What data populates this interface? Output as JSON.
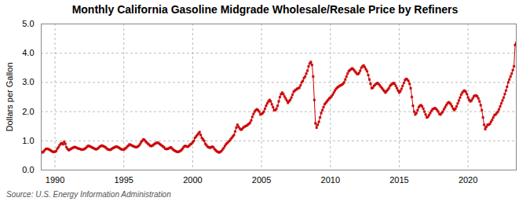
{
  "chart_data": {
    "type": "line",
    "title": "Monthly California Gasoline Midgrade Wholesale/Resale Price by Refiners",
    "ylabel": "Dollars per Gallon",
    "caption": "Source: U.S. Energy Information Administration",
    "color": "#cc0000",
    "marker": "square",
    "line_style": "solid",
    "grid": true,
    "xlim": [
      1989.0,
      2023.5
    ],
    "ylim": [
      0.0,
      5.0
    ],
    "xticks": [
      1990,
      1995,
      2000,
      2005,
      2010,
      2015,
      2020
    ],
    "yticks": [
      {
        "value": 0.0,
        "label": "0.0"
      },
      {
        "value": 1.0,
        "label": "1.0"
      },
      {
        "value": 2.0,
        "label": "2.0"
      },
      {
        "value": 3.0,
        "label": "3.0"
      },
      {
        "value": 4.0,
        "label": "4.0"
      },
      {
        "value": 5.0,
        "label": "5.0"
      }
    ],
    "x": [
      1989,
      1989.0833,
      1989.1667,
      1989.25,
      1989.3333,
      1989.4167,
      1989.5,
      1989.5833,
      1989.6667,
      1989.75,
      1989.8333,
      1989.9167,
      1990,
      1990.0833,
      1990.1667,
      1990.25,
      1990.3333,
      1990.4167,
      1990.5,
      1990.5833,
      1990.6667,
      1990.75,
      1990.8333,
      1990.9167,
      1991,
      1991.0833,
      1991.1667,
      1991.25,
      1991.3333,
      1991.4167,
      1991.5,
      1991.5833,
      1991.6667,
      1991.75,
      1991.8333,
      1991.9167,
      1992,
      1992.0833,
      1992.1667,
      1992.25,
      1992.3333,
      1992.4167,
      1992.5,
      1992.5833,
      1992.6667,
      1992.75,
      1992.8333,
      1992.9167,
      1993,
      1993.0833,
      1993.1667,
      1993.25,
      1993.3333,
      1993.4167,
      1993.5,
      1993.5833,
      1993.6667,
      1993.75,
      1993.8333,
      1993.9167,
      1994,
      1994.0833,
      1994.1667,
      1994.25,
      1994.3333,
      1994.4167,
      1994.5,
      1994.5833,
      1994.6667,
      1994.75,
      1994.8333,
      1994.9167,
      1995,
      1995.0833,
      1995.1667,
      1995.25,
      1995.3333,
      1995.4167,
      1995.5,
      1995.5833,
      1995.6667,
      1995.75,
      1995.8333,
      1995.9167,
      1996,
      1996.0833,
      1996.1667,
      1996.25,
      1996.3333,
      1996.4167,
      1996.5,
      1996.5833,
      1996.6667,
      1996.75,
      1996.8333,
      1996.9167,
      1997,
      1997.0833,
      1997.1667,
      1997.25,
      1997.3333,
      1997.4167,
      1997.5,
      1997.5833,
      1997.6667,
      1997.75,
      1997.8333,
      1997.9167,
      1998,
      1998.0833,
      1998.1667,
      1998.25,
      1998.3333,
      1998.4167,
      1998.5,
      1998.5833,
      1998.6667,
      1998.75,
      1998.8333,
      1998.9167,
      1999,
      1999.0833,
      1999.1667,
      1999.25,
      1999.3333,
      1999.4167,
      1999.5,
      1999.5833,
      1999.6667,
      1999.75,
      1999.8333,
      1999.9167,
      2000,
      2000.0833,
      2000.1667,
      2000.25,
      2000.3333,
      2000.4167,
      2000.5,
      2000.5833,
      2000.6667,
      2000.75,
      2000.8333,
      2000.9167,
      2001,
      2001.0833,
      2001.1667,
      2001.25,
      2001.3333,
      2001.4167,
      2001.5,
      2001.5833,
      2001.6667,
      2001.75,
      2001.8333,
      2001.9167,
      2002,
      2002.0833,
      2002.1667,
      2002.25,
      2002.3333,
      2002.4167,
      2002.5,
      2002.5833,
      2002.6667,
      2002.75,
      2002.8333,
      2002.9167,
      2003,
      2003.0833,
      2003.1667,
      2003.25,
      2003.3333,
      2003.4167,
      2003.5,
      2003.5833,
      2003.6667,
      2003.75,
      2003.8333,
      2003.9167,
      2004,
      2004.0833,
      2004.1667,
      2004.25,
      2004.3333,
      2004.4167,
      2004.5,
      2004.5833,
      2004.6667,
      2004.75,
      2004.8333,
      2004.9167,
      2005,
      2005.0833,
      2005.1667,
      2005.25,
      2005.3333,
      2005.4167,
      2005.5,
      2005.5833,
      2005.6667,
      2005.75,
      2005.8333,
      2005.9167,
      2006,
      2006.0833,
      2006.1667,
      2006.25,
      2006.3333,
      2006.4167,
      2006.5,
      2006.5833,
      2006.6667,
      2006.75,
      2006.8333,
      2006.9167,
      2007,
      2007.0833,
      2007.1667,
      2007.25,
      2007.3333,
      2007.4167,
      2007.5,
      2007.5833,
      2007.6667,
      2007.75,
      2007.8333,
      2007.9167,
      2008,
      2008.0833,
      2008.1667,
      2008.25,
      2008.3333,
      2008.4167,
      2008.5,
      2008.5833,
      2008.6667,
      2008.75,
      2008.8333,
      2008.9167,
      2009,
      2009.0833,
      2009.1667,
      2009.25,
      2009.3333,
      2009.4167,
      2009.5,
      2009.5833,
      2009.6667,
      2009.75,
      2009.8333,
      2009.9167,
      2010,
      2010.0833,
      2010.1667,
      2010.25,
      2010.3333,
      2010.4167,
      2010.5,
      2010.5833,
      2010.6667,
      2010.75,
      2010.8333,
      2010.9167,
      2011,
      2011.0833,
      2011.1667,
      2011.25,
      2011.3333,
      2011.4167,
      2011.5,
      2011.5833,
      2011.6667,
      2011.75,
      2011.8333,
      2011.9167,
      2012,
      2012.0833,
      2012.1667,
      2012.25,
      2012.3333,
      2012.4167,
      2012.5,
      2012.5833,
      2012.6667,
      2012.75,
      2012.8333,
      2012.9167,
      2013,
      2013.0833,
      2013.1667,
      2013.25,
      2013.3333,
      2013.4167,
      2013.5,
      2013.5833,
      2013.6667,
      2013.75,
      2013.8333,
      2013.9167,
      2014,
      2014.0833,
      2014.1667,
      2014.25,
      2014.3333,
      2014.4167,
      2014.5,
      2014.5833,
      2014.6667,
      2014.75,
      2014.8333,
      2014.9167,
      2015,
      2015.0833,
      2015.1667,
      2015.25,
      2015.3333,
      2015.4167,
      2015.5,
      2015.5833,
      2015.6667,
      2015.75,
      2015.8333,
      2015.9167,
      2016,
      2016.0833,
      2016.1667,
      2016.25,
      2016.3333,
      2016.4167,
      2016.5,
      2016.5833,
      2016.6667,
      2016.75,
      2016.8333,
      2016.9167,
      2017,
      2017.0833,
      2017.1667,
      2017.25,
      2017.3333,
      2017.4167,
      2017.5,
      2017.5833,
      2017.6667,
      2017.75,
      2017.8333,
      2017.9167,
      2018,
      2018.0833,
      2018.1667,
      2018.25,
      2018.3333,
      2018.4167,
      2018.5,
      2018.5833,
      2018.6667,
      2018.75,
      2018.8333,
      2018.9167,
      2019,
      2019.0833,
      2019.1667,
      2019.25,
      2019.3333,
      2019.4167,
      2019.5,
      2019.5833,
      2019.6667,
      2019.75,
      2019.8333,
      2019.9167,
      2020,
      2020.0833,
      2020.1667,
      2020.25,
      2020.3333,
      2020.4167,
      2020.5,
      2020.5833,
      2020.6667,
      2020.75,
      2020.8333,
      2020.9167,
      2021,
      2021.0833,
      2021.1667,
      2021.25,
      2021.3333,
      2021.4167,
      2021.5,
      2021.5833,
      2021.6667,
      2021.75,
      2021.8333,
      2021.9167,
      2022,
      2022.0833,
      2022.1667,
      2022.25,
      2022.3333,
      2022.4167,
      2022.5,
      2022.5833,
      2022.6667,
      2022.75,
      2022.8333,
      2022.9167,
      2023,
      2023.0833,
      2023.1667,
      2023.25,
      2023.3333,
      2023.4167,
      2023.5
    ],
    "values": [
      0.62,
      0.6,
      0.63,
      0.68,
      0.72,
      0.73,
      0.72,
      0.7,
      0.68,
      0.65,
      0.63,
      0.62,
      0.63,
      0.65,
      0.73,
      0.78,
      0.85,
      0.9,
      0.92,
      0.88,
      0.97,
      0.9,
      0.78,
      0.72,
      0.68,
      0.7,
      0.73,
      0.75,
      0.77,
      0.79,
      0.78,
      0.76,
      0.74,
      0.73,
      0.72,
      0.7,
      0.7,
      0.71,
      0.73,
      0.76,
      0.8,
      0.83,
      0.82,
      0.8,
      0.78,
      0.76,
      0.74,
      0.72,
      0.71,
      0.73,
      0.76,
      0.8,
      0.82,
      0.84,
      0.82,
      0.8,
      0.78,
      0.74,
      0.71,
      0.7,
      0.69,
      0.71,
      0.74,
      0.76,
      0.78,
      0.8,
      0.8,
      0.78,
      0.76,
      0.73,
      0.71,
      0.7,
      0.7,
      0.73,
      0.76,
      0.8,
      0.84,
      0.88,
      0.86,
      0.84,
      0.82,
      0.8,
      0.79,
      0.78,
      0.8,
      0.83,
      0.88,
      0.95,
      1.0,
      1.05,
      1.03,
      0.98,
      0.94,
      0.9,
      0.87,
      0.83,
      0.82,
      0.84,
      0.87,
      0.9,
      0.92,
      0.94,
      0.93,
      0.9,
      0.87,
      0.84,
      0.81,
      0.78,
      0.73,
      0.72,
      0.72,
      0.74,
      0.76,
      0.78,
      0.74,
      0.7,
      0.67,
      0.65,
      0.63,
      0.62,
      0.63,
      0.65,
      0.68,
      0.72,
      0.78,
      0.82,
      0.82,
      0.8,
      0.8,
      0.84,
      0.88,
      0.9,
      0.95,
      1.0,
      1.1,
      1.15,
      1.2,
      1.25,
      1.3,
      1.2,
      1.1,
      1.05,
      1.0,
      0.9,
      0.85,
      0.8,
      0.78,
      0.76,
      0.78,
      0.8,
      0.78,
      0.72,
      0.68,
      0.64,
      0.62,
      0.6,
      0.62,
      0.65,
      0.7,
      0.75,
      0.82,
      0.88,
      0.92,
      0.96,
      1.0,
      1.05,
      1.1,
      1.15,
      1.2,
      1.32,
      1.45,
      1.55,
      1.48,
      1.42,
      1.38,
      1.4,
      1.45,
      1.48,
      1.5,
      1.52,
      1.55,
      1.58,
      1.62,
      1.7,
      1.82,
      1.92,
      2.0,
      2.05,
      2.08,
      2.05,
      2.0,
      1.9,
      1.92,
      1.95,
      2.0,
      2.1,
      2.2,
      2.28,
      2.35,
      2.4,
      2.35,
      2.25,
      2.15,
      2.05,
      2.05,
      2.1,
      2.2,
      2.35,
      2.5,
      2.6,
      2.65,
      2.6,
      2.52,
      2.45,
      2.38,
      2.3,
      2.35,
      2.4,
      2.48,
      2.58,
      2.68,
      2.72,
      2.75,
      2.78,
      2.8,
      2.82,
      2.9,
      3.0,
      3.05,
      3.15,
      3.2,
      3.3,
      3.4,
      3.55,
      3.65,
      3.7,
      3.6,
      3.2,
      2.4,
      1.6,
      1.45,
      1.55,
      1.65,
      1.8,
      1.95,
      2.05,
      2.15,
      2.25,
      2.3,
      2.35,
      2.4,
      2.45,
      2.48,
      2.52,
      2.58,
      2.65,
      2.72,
      2.78,
      2.82,
      2.85,
      2.88,
      2.9,
      2.92,
      2.95,
      3.0,
      3.1,
      3.2,
      3.3,
      3.38,
      3.42,
      3.45,
      3.48,
      3.45,
      3.4,
      3.35,
      3.3,
      3.28,
      3.32,
      3.4,
      3.5,
      3.55,
      3.58,
      3.52,
      3.45,
      3.38,
      3.25,
      3.1,
      2.95,
      2.8,
      2.82,
      2.88,
      2.92,
      2.95,
      2.98,
      2.95,
      2.9,
      2.85,
      2.8,
      2.75,
      2.7,
      2.65,
      2.7,
      2.75,
      2.8,
      2.88,
      2.92,
      2.95,
      2.98,
      2.95,
      2.88,
      2.8,
      2.72,
      2.65,
      2.7,
      2.78,
      2.88,
      2.98,
      3.08,
      3.12,
      3.1,
      3.05,
      2.95,
      2.8,
      2.5,
      2.2,
      2.0,
      1.9,
      1.95,
      2.05,
      2.15,
      2.2,
      2.22,
      2.18,
      2.1,
      2.0,
      1.9,
      1.8,
      1.82,
      1.88,
      1.95,
      2.02,
      2.08,
      2.1,
      2.12,
      2.1,
      2.05,
      2.0,
      1.92,
      1.9,
      1.95,
      2.0,
      2.08,
      2.15,
      2.22,
      2.28,
      2.32,
      2.3,
      2.25,
      2.18,
      2.1,
      2.05,
      2.1,
      2.18,
      2.28,
      2.38,
      2.48,
      2.58,
      2.65,
      2.7,
      2.72,
      2.68,
      2.6,
      2.48,
      2.4,
      2.35,
      2.38,
      2.45,
      2.52,
      2.55,
      2.55,
      2.52,
      2.45,
      2.35,
      2.22,
      2.05,
      1.8,
      1.55,
      1.4,
      1.48,
      1.55,
      1.55,
      1.58,
      1.65,
      1.72,
      1.8,
      1.88,
      1.9,
      1.95,
      2.0,
      2.08,
      2.18,
      2.28,
      2.38,
      2.48,
      2.6,
      2.72,
      2.85,
      3.0,
      3.1,
      3.2,
      3.3,
      3.42,
      3.55,
      4.28,
      4.35
    ]
  }
}
